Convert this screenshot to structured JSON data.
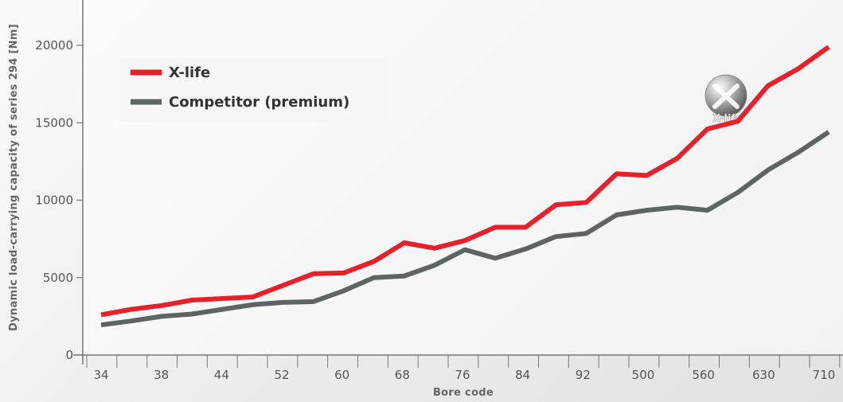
{
  "chart_data": {
    "type": "line",
    "xlabel": "Bore code",
    "ylabel": "Dynamic load-carrying capacity of series 294 [Nm]",
    "ylim": [
      0,
      20000
    ],
    "yticks": [
      0,
      5000,
      10000,
      15000,
      20000
    ],
    "x_tick_labels": [
      "34",
      "38",
      "44",
      "52",
      "60",
      "68",
      "76",
      "84",
      "92",
      "500",
      "560",
      "630",
      "710"
    ],
    "grid": false,
    "legend_position": "top-left",
    "badge_text": "X-life",
    "series": [
      {
        "name": "X-life",
        "color": "#e8202a",
        "values": [
          2600,
          2950,
          3200,
          3550,
          3650,
          3750,
          4500,
          5250,
          5300,
          6050,
          7250,
          6900,
          7400,
          8250,
          8250,
          9700,
          9850,
          11700,
          11600,
          12700,
          14600,
          15100,
          17400,
          18500,
          19900
        ]
      },
      {
        "name": "Competitor (premium)",
        "color": "#5c6465",
        "values": [
          1950,
          2200,
          2500,
          2650,
          2950,
          3250,
          3400,
          3450,
          4150,
          5000,
          5100,
          5800,
          6800,
          6250,
          6850,
          7650,
          7850,
          9050,
          9350,
          9550,
          9350,
          10500,
          11950,
          13100,
          14400
        ]
      }
    ]
  }
}
